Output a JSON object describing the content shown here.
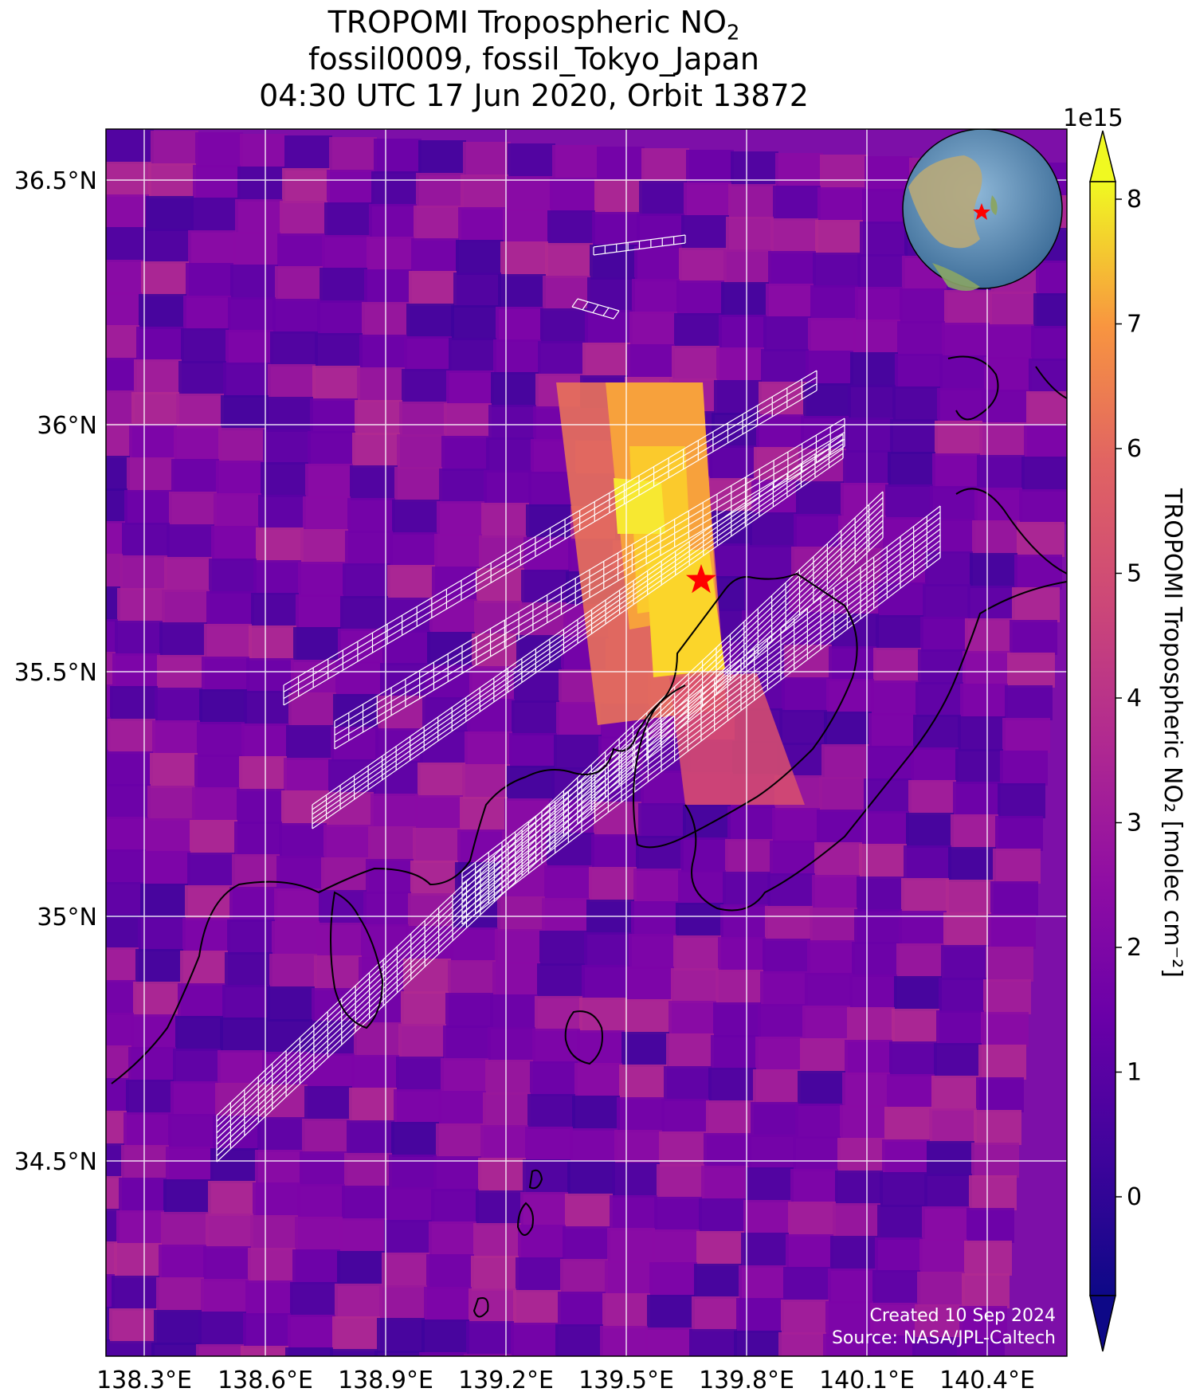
{
  "title": {
    "line1_prefix": "TROPOMI Tropospheric NO",
    "line1_sub": "2",
    "line2": "fossil0009, fossil_Tokyo_Japan",
    "line3": "04:30 UTC 17 Jun 2020, Orbit 13872"
  },
  "map": {
    "lon_ticks": [
      "138.3°E",
      "138.6°E",
      "138.9°E",
      "139.2°E",
      "139.5°E",
      "139.8°E",
      "140.1°E",
      "140.4°E"
    ],
    "lat_ticks": [
      "36.5°N",
      "36°N",
      "35.5°N",
      "35°N",
      "34.5°N"
    ],
    "target": "red star",
    "inset": "globe with red star over Japan"
  },
  "colorbar": {
    "exponent": "1e15",
    "ticks": [
      "8",
      "7",
      "6",
      "5",
      "4",
      "3",
      "2",
      "1",
      "0"
    ],
    "label": "TROPOMI Tropospheric NO₂ [molec cm⁻²]",
    "colormap": "plasma",
    "extend": "both"
  },
  "credits": {
    "created": "Created 10 Sep 2024",
    "source": "Source: NASA/JPL-Caltech"
  },
  "colors": {
    "grid": "#ffffff",
    "star": "#ff0000",
    "coast": "#000000",
    "tracks": "#ffffff"
  }
}
